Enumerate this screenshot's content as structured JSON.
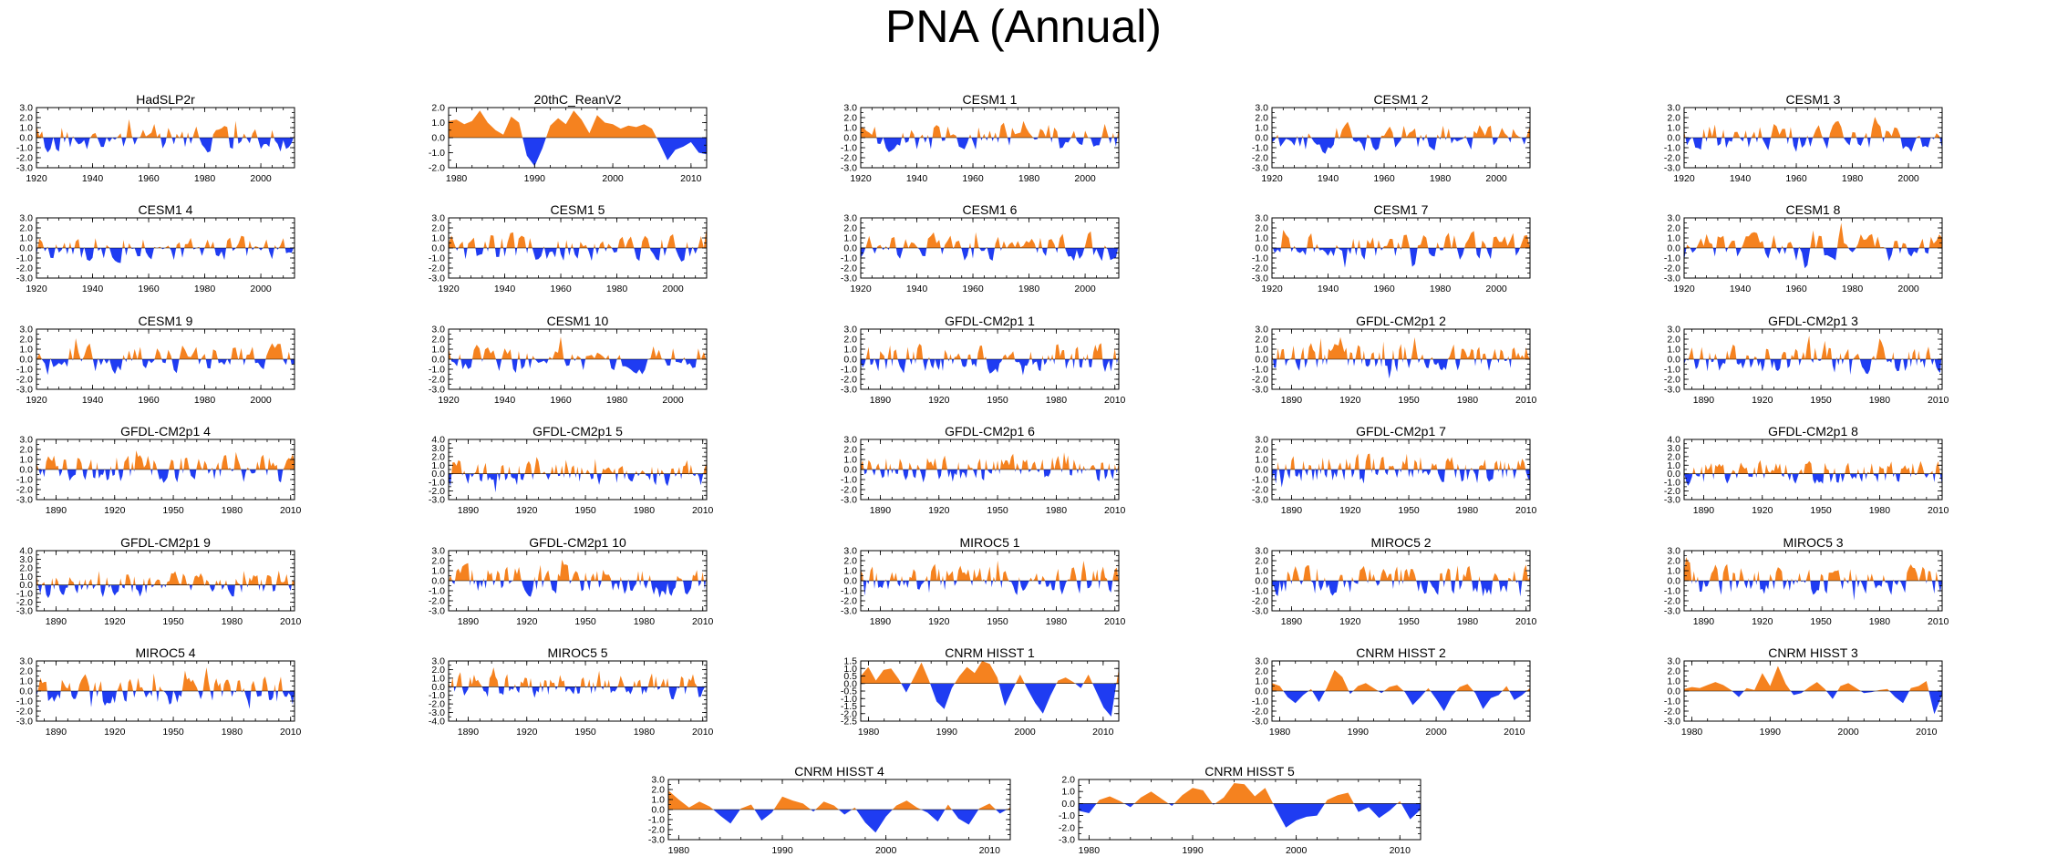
{
  "page": {
    "title": "PNA (Annual)"
  },
  "colors": {
    "positive": "#F5821F",
    "negative": "#1F3CF2",
    "axis": "#000000"
  },
  "chart_data": [
    {
      "type": "area",
      "title": "HadSLP2r",
      "x_start": 1920,
      "x_end": 2012,
      "xticks": [
        1920,
        1940,
        1960,
        1980,
        2000
      ],
      "ylim": [
        -3,
        3
      ],
      "yticks": [
        -3,
        -2,
        -1,
        0,
        1,
        2,
        3
      ],
      "seed": 11,
      "values_note": "annual PNA index, positive orange / negative blue"
    },
    {
      "type": "area",
      "title": "20thC_ReanV2",
      "x_start": 1979,
      "x_end": 2012,
      "xticks": [
        1980,
        1990,
        2000,
        2010
      ],
      "ylim": [
        -2,
        2
      ],
      "yticks": [
        -2,
        -1,
        0,
        1,
        2
      ],
      "seed": 12,
      "values": [
        1.1,
        1.2,
        0.9,
        1.1,
        1.8,
        1.0,
        0.5,
        0.2,
        1.4,
        1.0,
        -1.2,
        -1.9,
        -0.7,
        0.8,
        1.3,
        0.9,
        1.8,
        1.2,
        0.3,
        1.5,
        1.0,
        0.9,
        0.6,
        0.8,
        0.7,
        0.9,
        0.6,
        -0.4,
        -1.5,
        -0.8,
        -0.6,
        -0.3,
        -1.0,
        -1.1
      ]
    },
    {
      "type": "area",
      "title": "CESM1 1",
      "x_start": 1920,
      "x_end": 2012,
      "xticks": [
        1920,
        1940,
        1960,
        1980,
        2000
      ],
      "ylim": [
        -3,
        3
      ],
      "yticks": [
        -3,
        -2,
        -1,
        0,
        1,
        2,
        3
      ],
      "seed": 13
    },
    {
      "type": "area",
      "title": "CESM1 2",
      "x_start": 1920,
      "x_end": 2012,
      "xticks": [
        1920,
        1940,
        1960,
        1980,
        2000
      ],
      "ylim": [
        -3,
        3
      ],
      "yticks": [
        -3,
        -2,
        -1,
        0,
        1,
        2,
        3
      ],
      "seed": 14
    },
    {
      "type": "area",
      "title": "CESM1 3",
      "x_start": 1920,
      "x_end": 2012,
      "xticks": [
        1920,
        1940,
        1960,
        1980,
        2000
      ],
      "ylim": [
        -3,
        3
      ],
      "yticks": [
        -3,
        -2,
        -1,
        0,
        1,
        2,
        3
      ],
      "seed": 15
    },
    {
      "type": "area",
      "title": "CESM1 4",
      "x_start": 1920,
      "x_end": 2012,
      "xticks": [
        1920,
        1940,
        1960,
        1980,
        2000
      ],
      "ylim": [
        -3,
        3
      ],
      "yticks": [
        -3,
        -2,
        -1,
        0,
        1,
        2,
        3
      ],
      "seed": 16
    },
    {
      "type": "area",
      "title": "CESM1 5",
      "x_start": 1920,
      "x_end": 2012,
      "xticks": [
        1920,
        1940,
        1960,
        1980,
        2000
      ],
      "ylim": [
        -3,
        3
      ],
      "yticks": [
        -3,
        -2,
        -1,
        0,
        1,
        2,
        3
      ],
      "seed": 17
    },
    {
      "type": "area",
      "title": "CESM1 6",
      "x_start": 1920,
      "x_end": 2012,
      "xticks": [
        1920,
        1940,
        1960,
        1980,
        2000
      ],
      "ylim": [
        -3,
        3
      ],
      "yticks": [
        -3,
        -2,
        -1,
        0,
        1,
        2,
        3
      ],
      "seed": 18
    },
    {
      "type": "area",
      "title": "CESM1 7",
      "x_start": 1920,
      "x_end": 2012,
      "xticks": [
        1920,
        1940,
        1960,
        1980,
        2000
      ],
      "ylim": [
        -3,
        3
      ],
      "yticks": [
        -3,
        -2,
        -1,
        0,
        1,
        2,
        3
      ],
      "seed": 19
    },
    {
      "type": "area",
      "title": "CESM1 8",
      "x_start": 1920,
      "x_end": 2012,
      "xticks": [
        1920,
        1940,
        1960,
        1980,
        2000
      ],
      "ylim": [
        -3,
        3
      ],
      "yticks": [
        -3,
        -2,
        -1,
        0,
        1,
        2,
        3
      ],
      "seed": 20
    },
    {
      "type": "area",
      "title": "CESM1 9",
      "x_start": 1920,
      "x_end": 2012,
      "xticks": [
        1920,
        1940,
        1960,
        1980,
        2000
      ],
      "ylim": [
        -3,
        3
      ],
      "yticks": [
        -3,
        -2,
        -1,
        0,
        1,
        2,
        3
      ],
      "seed": 21
    },
    {
      "type": "area",
      "title": "CESM1 10",
      "x_start": 1920,
      "x_end": 2012,
      "xticks": [
        1920,
        1940,
        1960,
        1980,
        2000
      ],
      "ylim": [
        -3,
        3
      ],
      "yticks": [
        -3,
        -2,
        -1,
        0,
        1,
        2,
        3
      ],
      "seed": 22
    },
    {
      "type": "area",
      "title": "GFDL-CM2p1 1",
      "x_start": 1880,
      "x_end": 2012,
      "xticks": [
        1890,
        1920,
        1950,
        1980,
        2010
      ],
      "ylim": [
        -3,
        3
      ],
      "yticks": [
        -3,
        -2,
        -1,
        0,
        1,
        2,
        3
      ],
      "seed": 23
    },
    {
      "type": "area",
      "title": "GFDL-CM2p1 2",
      "x_start": 1880,
      "x_end": 2012,
      "xticks": [
        1890,
        1920,
        1950,
        1980,
        2010
      ],
      "ylim": [
        -3,
        3
      ],
      "yticks": [
        -3,
        -2,
        -1,
        0,
        1,
        2,
        3
      ],
      "seed": 24
    },
    {
      "type": "area",
      "title": "GFDL-CM2p1 3",
      "x_start": 1880,
      "x_end": 2012,
      "xticks": [
        1890,
        1920,
        1950,
        1980,
        2010
      ],
      "ylim": [
        -3,
        3
      ],
      "yticks": [
        -3,
        -2,
        -1,
        0,
        1,
        2,
        3
      ],
      "seed": 25
    },
    {
      "type": "area",
      "title": "GFDL-CM2p1 4",
      "x_start": 1880,
      "x_end": 2012,
      "xticks": [
        1890,
        1920,
        1950,
        1980,
        2010
      ],
      "ylim": [
        -3,
        3
      ],
      "yticks": [
        -3,
        -2,
        -1,
        0,
        1,
        2,
        3
      ],
      "seed": 26
    },
    {
      "type": "area",
      "title": "GFDL-CM2p1 5",
      "x_start": 1880,
      "x_end": 2012,
      "xticks": [
        1890,
        1920,
        1950,
        1980,
        2010
      ],
      "ylim": [
        -3,
        4
      ],
      "yticks": [
        -3,
        -2,
        -1,
        0,
        1,
        2,
        3,
        4
      ],
      "seed": 27
    },
    {
      "type": "area",
      "title": "GFDL-CM2p1 6",
      "x_start": 1880,
      "x_end": 2012,
      "xticks": [
        1890,
        1920,
        1950,
        1980,
        2010
      ],
      "ylim": [
        -3,
        3
      ],
      "yticks": [
        -3,
        -2,
        -1,
        0,
        1,
        2,
        3
      ],
      "seed": 28
    },
    {
      "type": "area",
      "title": "GFDL-CM2p1 7",
      "x_start": 1880,
      "x_end": 2012,
      "xticks": [
        1890,
        1920,
        1950,
        1980,
        2010
      ],
      "ylim": [
        -3,
        3
      ],
      "yticks": [
        -3,
        -2,
        -1,
        0,
        1,
        2,
        3
      ],
      "seed": 29
    },
    {
      "type": "area",
      "title": "GFDL-CM2p1 8",
      "x_start": 1880,
      "x_end": 2012,
      "xticks": [
        1890,
        1920,
        1950,
        1980,
        2010
      ],
      "ylim": [
        -3,
        4
      ],
      "yticks": [
        -3,
        -2,
        -1,
        0,
        1,
        2,
        3,
        4
      ],
      "seed": 30
    },
    {
      "type": "area",
      "title": "GFDL-CM2p1 9",
      "x_start": 1880,
      "x_end": 2012,
      "xticks": [
        1890,
        1920,
        1950,
        1980,
        2010
      ],
      "ylim": [
        -3,
        4
      ],
      "yticks": [
        -3,
        -2,
        -1,
        0,
        1,
        2,
        3,
        4
      ],
      "seed": 31
    },
    {
      "type": "area",
      "title": "GFDL-CM2p1 10",
      "x_start": 1880,
      "x_end": 2012,
      "xticks": [
        1890,
        1920,
        1950,
        1980,
        2010
      ],
      "ylim": [
        -3,
        3
      ],
      "yticks": [
        -3,
        -2,
        -1,
        0,
        1,
        2,
        3
      ],
      "seed": 32
    },
    {
      "type": "area",
      "title": "MIROC5 1",
      "x_start": 1880,
      "x_end": 2012,
      "xticks": [
        1890,
        1920,
        1950,
        1980,
        2010
      ],
      "ylim": [
        -3,
        3
      ],
      "yticks": [
        -3,
        -2,
        -1,
        0,
        1,
        2,
        3
      ],
      "seed": 33
    },
    {
      "type": "area",
      "title": "MIROC5 2",
      "x_start": 1880,
      "x_end": 2012,
      "xticks": [
        1890,
        1920,
        1950,
        1980,
        2010
      ],
      "ylim": [
        -3,
        3
      ],
      "yticks": [
        -3,
        -2,
        -1,
        0,
        1,
        2,
        3
      ],
      "seed": 34
    },
    {
      "type": "area",
      "title": "MIROC5 3",
      "x_start": 1880,
      "x_end": 2012,
      "xticks": [
        1890,
        1920,
        1950,
        1980,
        2010
      ],
      "ylim": [
        -3,
        3
      ],
      "yticks": [
        -3,
        -2,
        -1,
        0,
        1,
        2,
        3
      ],
      "seed": 35
    },
    {
      "type": "area",
      "title": "MIROC5 4",
      "x_start": 1880,
      "x_end": 2012,
      "xticks": [
        1890,
        1920,
        1950,
        1980,
        2010
      ],
      "ylim": [
        -3,
        3
      ],
      "yticks": [
        -3,
        -2,
        -1,
        0,
        1,
        2,
        3
      ],
      "seed": 36
    },
    {
      "type": "area",
      "title": "MIROC5 5",
      "x_start": 1880,
      "x_end": 2012,
      "xticks": [
        1890,
        1920,
        1950,
        1980,
        2010
      ],
      "ylim": [
        -4,
        3
      ],
      "yticks": [
        -4,
        -3,
        -2,
        -1,
        0,
        1,
        2,
        3
      ],
      "seed": 37
    },
    {
      "type": "area",
      "title": "CNRM HISST 1",
      "x_start": 1979,
      "x_end": 2012,
      "xticks": [
        1980,
        1990,
        2000,
        2010
      ],
      "ylim": [
        -2.5,
        1.5
      ],
      "yticks": [
        -2.5,
        -2,
        -1.5,
        -1,
        -0.5,
        0,
        0.5,
        1,
        1.5
      ],
      "seed": 38,
      "values": [
        0.5,
        1.1,
        0.2,
        0.9,
        1.0,
        0.3,
        -0.6,
        0.4,
        1.4,
        0.2,
        -1.2,
        -1.7,
        -0.3,
        0.5,
        1.1,
        0.7,
        1.5,
        1.3,
        0.4,
        -1.5,
        -0.4,
        0.6,
        -0.4,
        -1.3,
        -2.0,
        -0.8,
        0.2,
        0.4,
        0.1,
        -0.3,
        0.6,
        -0.5,
        -1.6,
        -2.2,
        1.0
      ]
    },
    {
      "type": "area",
      "title": "CNRM HISST 2",
      "x_start": 1979,
      "x_end": 2012,
      "xticks": [
        1980,
        1990,
        2000,
        2010
      ],
      "ylim": [
        -3,
        3
      ],
      "yticks": [
        -3,
        -2,
        -1,
        0,
        1,
        2,
        3
      ],
      "seed": 39,
      "values": [
        0.8,
        0.5,
        -0.6,
        -1.2,
        -0.4,
        0.2,
        -1.1,
        0.3,
        2.1,
        1.4,
        -0.3,
        0.5,
        0.8,
        0.3,
        -0.2,
        0.4,
        0.6,
        -0.1,
        -1.4,
        -0.6,
        0.3,
        -0.8,
        -2.0,
        -0.5,
        0.4,
        0.7,
        -0.2,
        -1.8,
        -0.7,
        -0.4,
        0.5,
        -0.9,
        -0.4,
        0.3
      ]
    },
    {
      "type": "area",
      "title": "CNRM HISST 3",
      "x_start": 1979,
      "x_end": 2012,
      "xticks": [
        1980,
        1990,
        2000,
        2010
      ],
      "ylim": [
        -3,
        3
      ],
      "yticks": [
        -3,
        -2,
        -1,
        0,
        1,
        2,
        3
      ],
      "seed": 40,
      "values": [
        0.2,
        0.4,
        0.3,
        0.6,
        0.9,
        0.6,
        0.1,
        -0.6,
        0.3,
        0.1,
        1.8,
        0.5,
        2.5,
        0.7,
        -0.4,
        -0.2,
        0.4,
        0.9,
        0.2,
        -0.8,
        0.5,
        0.8,
        0.3,
        -0.2,
        -0.1,
        0.1,
        0.2,
        -0.6,
        -1.2,
        0.3,
        0.5,
        1.0,
        -2.3,
        -0.4
      ]
    },
    {
      "type": "area",
      "title": "CNRM HISST 4",
      "x_start": 1979,
      "x_end": 2012,
      "xticks": [
        1980,
        1990,
        2000,
        2010
      ],
      "ylim": [
        -3,
        3
      ],
      "yticks": [
        -3,
        -2,
        -1,
        0,
        1,
        2,
        3
      ],
      "seed": 41,
      "values": [
        1.9,
        1.0,
        0.2,
        0.8,
        0.3,
        -0.6,
        -1.4,
        0.1,
        0.5,
        -1.1,
        -0.3,
        1.3,
        0.9,
        0.6,
        -0.2,
        0.8,
        0.4,
        -0.5,
        0.2,
        -1.3,
        -2.3,
        -0.7,
        0.4,
        0.9,
        0.2,
        -0.3,
        -1.2,
        0.5,
        -0.9,
        -1.5,
        0.1,
        0.6,
        -0.4,
        0.2
      ]
    },
    {
      "type": "area",
      "title": "CNRM HISST 5",
      "x_start": 1979,
      "x_end": 2012,
      "xticks": [
        1980,
        1990,
        2000,
        2010
      ],
      "ylim": [
        -3,
        2
      ],
      "yticks": [
        -3,
        -2,
        -1,
        0,
        1,
        2
      ],
      "seed": 42,
      "values": [
        -0.6,
        -0.8,
        0.3,
        0.6,
        0.2,
        -0.3,
        0.5,
        1.0,
        0.4,
        -0.2,
        0.7,
        1.3,
        1.1,
        -0.1,
        0.5,
        1.7,
        1.6,
        0.6,
        1.3,
        -0.4,
        -2.0,
        -1.4,
        -1.1,
        -1.0,
        0.3,
        0.7,
        0.9,
        -0.7,
        -0.3,
        -1.2,
        -0.6,
        0.2,
        -1.3,
        -0.5
      ]
    }
  ]
}
